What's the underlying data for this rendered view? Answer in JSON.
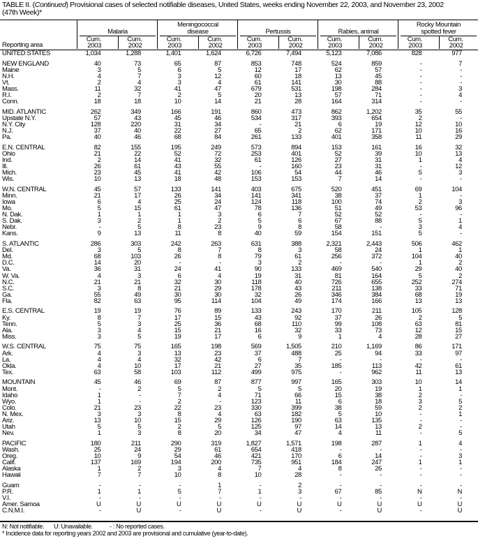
{
  "title": {
    "prefix": "TABLE II. (",
    "italic": "Continued",
    "suffix": ") Provisional cases of selected notifiable diseases, United States, weeks ending November 22, 2003, and November 23, 2002",
    "line2": "(47th Week)*"
  },
  "header": {
    "area_label": "Reporting area",
    "groups": [
      {
        "label": "Malaria"
      },
      {
        "label": "Meningococcal disease"
      },
      {
        "label": "Pertussis"
      },
      {
        "label": "Rabies, animal"
      },
      {
        "label": "Rocky Mountain spotted fever"
      }
    ],
    "sub": [
      {
        "l1": "Cum.",
        "l2": "2003"
      },
      {
        "l1": "Cum.",
        "l2": "2002"
      }
    ]
  },
  "groups": [
    {
      "rows": [
        {
          "area": "UNITED STATES",
          "values": [
            "1,034",
            "1,288",
            "1,401",
            "1,624",
            "6,726",
            "7,494",
            "5,123",
            "7,086",
            "828",
            "977"
          ]
        }
      ]
    },
    {
      "rows": [
        {
          "area": "NEW ENGLAND",
          "values": [
            "40",
            "73",
            "65",
            "87",
            "853",
            "748",
            "524",
            "859",
            "-",
            "7"
          ]
        },
        {
          "area": "Maine",
          "values": [
            "3",
            "5",
            "6",
            "5",
            "12",
            "17",
            "62",
            "57",
            "-",
            "-"
          ]
        },
        {
          "area": "N.H.",
          "values": [
            "4",
            "7",
            "3",
            "12",
            "60",
            "18",
            "13",
            "45",
            "-",
            "-"
          ]
        },
        {
          "area": "Vt.",
          "values": [
            "2",
            "4",
            "3",
            "4",
            "61",
            "141",
            "30",
            "88",
            "-",
            "-"
          ]
        },
        {
          "area": "Mass.",
          "values": [
            "11",
            "32",
            "41",
            "47",
            "679",
            "531",
            "198",
            "284",
            "-",
            "3"
          ]
        },
        {
          "area": "R.I.",
          "values": [
            "2",
            "7",
            "2",
            "5",
            "20",
            "13",
            "57",
            "71",
            "-",
            "4"
          ]
        },
        {
          "area": "Conn.",
          "values": [
            "18",
            "18",
            "10",
            "14",
            "21",
            "28",
            "164",
            "314",
            "-",
            "-"
          ]
        }
      ]
    },
    {
      "rows": [
        {
          "area": "MID. ATLANTIC",
          "values": [
            "262",
            "349",
            "166",
            "191",
            "860",
            "473",
            "862",
            "1,202",
            "35",
            "55"
          ]
        },
        {
          "area": "Upstate N.Y.",
          "values": [
            "57",
            "43",
            "45",
            "46",
            "534",
            "317",
            "393",
            "654",
            "2",
            "-"
          ]
        },
        {
          "area": "N.Y. City",
          "values": [
            "128",
            "220",
            "31",
            "34",
            "-",
            "21",
            "6",
            "19",
            "12",
            "10"
          ]
        },
        {
          "area": "N.J.",
          "values": [
            "37",
            "40",
            "22",
            "27",
            "65",
            "2",
            "62",
            "171",
            "10",
            "16"
          ]
        },
        {
          "area": "Pa.",
          "values": [
            "40",
            "46",
            "68",
            "84",
            "261",
            "133",
            "401",
            "358",
            "11",
            "29"
          ]
        }
      ]
    },
    {
      "rows": [
        {
          "area": "E.N. CENTRAL",
          "values": [
            "82",
            "155",
            "195",
            "249",
            "573",
            "894",
            "153",
            "161",
            "16",
            "32"
          ]
        },
        {
          "area": "Ohio",
          "values": [
            "21",
            "22",
            "52",
            "72",
            "253",
            "401",
            "52",
            "39",
            "10",
            "13"
          ]
        },
        {
          "area": "Ind.",
          "values": [
            "2",
            "14",
            "41",
            "32",
            "61",
            "126",
            "27",
            "31",
            "1",
            "4"
          ]
        },
        {
          "area": "Ill.",
          "values": [
            "26",
            "61",
            "43",
            "55",
            "-",
            "160",
            "23",
            "31",
            "-",
            "12"
          ]
        },
        {
          "area": "Mich.",
          "values": [
            "23",
            "45",
            "41",
            "42",
            "106",
            "54",
            "44",
            "46",
            "5",
            "3"
          ]
        },
        {
          "area": "Wis.",
          "values": [
            "10",
            "13",
            "18",
            "48",
            "153",
            "153",
            "7",
            "14",
            "-",
            "-"
          ]
        }
      ]
    },
    {
      "rows": [
        {
          "area": "W.N. CENTRAL",
          "values": [
            "45",
            "57",
            "133",
            "141",
            "403",
            "675",
            "520",
            "451",
            "69",
            "104"
          ]
        },
        {
          "area": "Minn.",
          "values": [
            "21",
            "17",
            "26",
            "34",
            "141",
            "341",
            "38",
            "37",
            "1",
            "-"
          ]
        },
        {
          "area": "Iowa",
          "values": [
            "6",
            "4",
            "25",
            "24",
            "124",
            "118",
            "100",
            "74",
            "2",
            "3"
          ]
        },
        {
          "area": "Mo.",
          "values": [
            "5",
            "15",
            "61",
            "47",
            "78",
            "136",
            "51",
            "49",
            "53",
            "96"
          ]
        },
        {
          "area": "N. Dak.",
          "values": [
            "1",
            "1",
            "1",
            "3",
            "6",
            "7",
            "52",
            "52",
            "-",
            "-"
          ]
        },
        {
          "area": "S. Dak.",
          "values": [
            "3",
            "2",
            "1",
            "2",
            "5",
            "6",
            "67",
            "88",
            "5",
            "1"
          ]
        },
        {
          "area": "Nebr.",
          "values": [
            "-",
            "5",
            "8",
            "23",
            "9",
            "8",
            "58",
            "-",
            "3",
            "4"
          ]
        },
        {
          "area": "Kans.",
          "values": [
            "9",
            "13",
            "11",
            "8",
            "40",
            "59",
            "154",
            "151",
            "5",
            "-"
          ]
        }
      ]
    },
    {
      "rows": [
        {
          "area": "S. ATLANTIC",
          "values": [
            "286",
            "303",
            "242",
            "263",
            "631",
            "388",
            "2,321",
            "2,443",
            "506",
            "462"
          ]
        },
        {
          "area": "Del.",
          "values": [
            "3",
            "5",
            "8",
            "7",
            "8",
            "3",
            "58",
            "24",
            "1",
            "1"
          ]
        },
        {
          "area": "Md.",
          "values": [
            "68",
            "103",
            "26",
            "8",
            "79",
            "61",
            "256",
            "372",
            "104",
            "40"
          ]
        },
        {
          "area": "D.C.",
          "values": [
            "14",
            "20",
            "-",
            "-",
            "3",
            "2",
            "-",
            "-",
            "1",
            "2"
          ]
        },
        {
          "area": "Va.",
          "values": [
            "36",
            "31",
            "24",
            "41",
            "90",
            "133",
            "469",
            "540",
            "29",
            "40"
          ]
        },
        {
          "area": "W. Va.",
          "values": [
            "4",
            "3",
            "6",
            "4",
            "19",
            "31",
            "81",
            "164",
            "5",
            "2"
          ]
        },
        {
          "area": "N.C.",
          "values": [
            "21",
            "21",
            "32",
            "30",
            "118",
            "40",
            "726",
            "655",
            "252",
            "274"
          ]
        },
        {
          "area": "S.C.",
          "values": [
            "3",
            "8",
            "21",
            "29",
            "178",
            "43",
            "211",
            "138",
            "33",
            "71"
          ]
        },
        {
          "area": "Ga.",
          "values": [
            "55",
            "49",
            "30",
            "30",
            "32",
            "26",
            "346",
            "384",
            "68",
            "19"
          ]
        },
        {
          "area": "Fla.",
          "values": [
            "82",
            "63",
            "95",
            "114",
            "104",
            "49",
            "174",
            "166",
            "13",
            "13"
          ]
        }
      ]
    },
    {
      "rows": [
        {
          "area": "E.S. CENTRAL",
          "values": [
            "19",
            "19",
            "76",
            "89",
            "133",
            "243",
            "170",
            "211",
            "105",
            "128"
          ]
        },
        {
          "area": "Ky.",
          "values": [
            "8",
            "7",
            "17",
            "15",
            "43",
            "92",
            "37",
            "26",
            "2",
            "5"
          ]
        },
        {
          "area": "Tenn.",
          "values": [
            "5",
            "3",
            "25",
            "36",
            "68",
            "110",
            "99",
            "108",
            "63",
            "81"
          ]
        },
        {
          "area": "Ala.",
          "values": [
            "3",
            "4",
            "15",
            "21",
            "16",
            "32",
            "33",
            "73",
            "12",
            "15"
          ]
        },
        {
          "area": "Miss.",
          "values": [
            "3",
            "5",
            "19",
            "17",
            "6",
            "9",
            "1",
            "4",
            "28",
            "27"
          ]
        }
      ]
    },
    {
      "rows": [
        {
          "area": "W.S. CENTRAL",
          "values": [
            "75",
            "75",
            "165",
            "198",
            "569",
            "1,505",
            "210",
            "1,169",
            "86",
            "171"
          ]
        },
        {
          "area": "Ark.",
          "values": [
            "4",
            "3",
            "13",
            "23",
            "37",
            "488",
            "25",
            "94",
            "33",
            "97"
          ]
        },
        {
          "area": "La.",
          "values": [
            "4",
            "4",
            "32",
            "42",
            "6",
            "7",
            "-",
            "-",
            "-",
            "-"
          ]
        },
        {
          "area": "Okla.",
          "values": [
            "4",
            "10",
            "17",
            "21",
            "27",
            "35",
            "185",
            "113",
            "42",
            "61"
          ]
        },
        {
          "area": "Tex.",
          "values": [
            "63",
            "58",
            "103",
            "112",
            "499",
            "975",
            "-",
            "962",
            "11",
            "13"
          ]
        }
      ]
    },
    {
      "rows": [
        {
          "area": "MOUNTAIN",
          "values": [
            "45",
            "46",
            "69",
            "87",
            "877",
            "997",
            "165",
            "303",
            "10",
            "14"
          ]
        },
        {
          "area": "Mont.",
          "values": [
            "-",
            "2",
            "5",
            "2",
            "5",
            "5",
            "20",
            "19",
            "1",
            "1"
          ]
        },
        {
          "area": "Idaho",
          "values": [
            "1",
            "-",
            "7",
            "4",
            "71",
            "66",
            "15",
            "38",
            "2",
            "-"
          ]
        },
        {
          "area": "Wyo.",
          "values": [
            "1",
            "-",
            "2",
            "-",
            "123",
            "11",
            "6",
            "18",
            "3",
            "5"
          ]
        },
        {
          "area": "Colo.",
          "values": [
            "21",
            "23",
            "22",
            "23",
            "330",
            "399",
            "38",
            "59",
            "2",
            "2"
          ]
        },
        {
          "area": "N. Mex.",
          "values": [
            "3",
            "3",
            "8",
            "4",
            "63",
            "182",
            "5",
            "10",
            "-",
            "1"
          ]
        },
        {
          "area": "Ariz.",
          "values": [
            "13",
            "10",
            "15",
            "29",
            "126",
            "190",
            "63",
            "135",
            "-",
            "-"
          ]
        },
        {
          "area": "Utah",
          "values": [
            "5",
            "5",
            "2",
            "5",
            "125",
            "97",
            "14",
            "13",
            "2",
            "-"
          ]
        },
        {
          "area": "Nev.",
          "values": [
            "1",
            "3",
            "8",
            "20",
            "34",
            "47",
            "4",
            "11",
            "-",
            "5"
          ]
        }
      ]
    },
    {
      "rows": [
        {
          "area": "PACIFIC",
          "values": [
            "180",
            "211",
            "290",
            "319",
            "1,827",
            "1,571",
            "198",
            "287",
            "1",
            "4"
          ]
        },
        {
          "area": "Wash.",
          "values": [
            "25",
            "24",
            "29",
            "61",
            "654",
            "418",
            "-",
            "-",
            "-",
            "-"
          ]
        },
        {
          "area": "Oreg.",
          "values": [
            "10",
            "9",
            "54",
            "46",
            "421",
            "170",
            "6",
            "14",
            "-",
            "3"
          ]
        },
        {
          "area": "Calif.",
          "values": [
            "137",
            "169",
            "194",
            "200",
            "735",
            "951",
            "184",
            "247",
            "1",
            "1"
          ]
        },
        {
          "area": "Alaska",
          "values": [
            "1",
            "2",
            "3",
            "4",
            "7",
            "4",
            "8",
            "26",
            "-",
            "-"
          ]
        },
        {
          "area": "Hawaii",
          "values": [
            "7",
            "7",
            "10",
            "8",
            "10",
            "28",
            "-",
            "-",
            "-",
            "-"
          ]
        }
      ]
    },
    {
      "rows": [
        {
          "area": "Guam",
          "values": [
            "-",
            "-",
            "-",
            "1",
            "-",
            "2",
            "-",
            "-",
            "-",
            "-"
          ]
        },
        {
          "area": "P.R.",
          "values": [
            "1",
            "1",
            "5",
            "7",
            "1",
            "3",
            "67",
            "85",
            "N",
            "N"
          ]
        },
        {
          "area": "V.I.",
          "values": [
            "-",
            "-",
            "-",
            "-",
            "-",
            "-",
            "-",
            "-",
            "-",
            "-"
          ]
        },
        {
          "area": "Amer. Samoa",
          "values": [
            "U",
            "U",
            "U",
            "U",
            "U",
            "U",
            "U",
            "U",
            "U",
            "U"
          ]
        },
        {
          "area": "C.N.M.I.",
          "values": [
            "-",
            "U",
            "-",
            "U",
            "-",
            "U",
            "-",
            "U",
            "-",
            "U"
          ]
        }
      ]
    }
  ],
  "footer": {
    "legend_n": "N: Not notifiable.",
    "legend_u": "U: Unavailable.",
    "legend_dash": "- : No reported cases.",
    "note": "* Incidence data for reporting years 2002 and 2003 are provisional and cumulative (year-to-date)."
  }
}
